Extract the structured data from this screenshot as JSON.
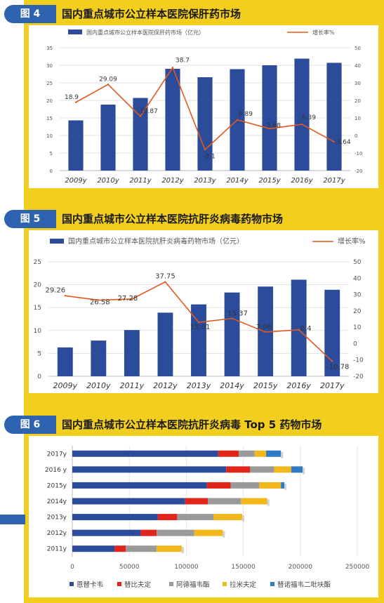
{
  "figures": [
    {
      "tag": "图 4",
      "title": "国内重点城市公立样本医院保肝药市场"
    },
    {
      "tag": "图 5",
      "title": "国内重点城市公立样本医院抗肝炎病毒药物市场"
    },
    {
      "tag": "图 6",
      "title": "国内重点城市公立样本医院抗肝炎病毒 Top 5 药物市场"
    }
  ],
  "chart_data": [
    {
      "type": "bar",
      "categories": [
        "2009y",
        "2010y",
        "2011y",
        "2012y",
        "2013y",
        "2014y",
        "2015y",
        "2016y",
        "2017y"
      ],
      "series": [
        {
          "name": "国内重点城市公立样本医院保肝药市场（亿元）",
          "kind": "bar",
          "axis": "left",
          "color": "#2b4b9b",
          "values": [
            14.3,
            18.8,
            20.7,
            29.0,
            26.6,
            28.9,
            30.0,
            31.9,
            30.7
          ]
        },
        {
          "name": "增长率%",
          "kind": "line",
          "axis": "right",
          "color": "#e2591d",
          "values": [
            18.9,
            29.09,
            10.87,
            38.7,
            -8.1,
            8.89,
            3.88,
            6.39,
            -3.64
          ],
          "labels": [
            "18.9",
            "29.09",
            "10.87",
            "38.7",
            "-8.1",
            "8.89",
            "3.88",
            "6.39",
            "-3.64"
          ]
        }
      ],
      "left_axis": {
        "min": 0,
        "max": 35,
        "ticks": [
          "0",
          "5",
          "10",
          "15",
          "20",
          "25",
          "30",
          "35"
        ]
      },
      "right_axis": {
        "min": -20,
        "max": 50,
        "ticks": [
          "-20",
          "-10",
          "0",
          "10",
          "20",
          "30",
          "40",
          "50"
        ]
      }
    },
    {
      "type": "bar",
      "categories": [
        "2009y",
        "2010y",
        "2011y",
        "2012y",
        "2013y",
        "2014y",
        "2015y",
        "2016y",
        "2017y"
      ],
      "series": [
        {
          "name": "国内重点城市公立样本医院抗肝炎病毒药物市场（亿元）",
          "kind": "bar",
          "axis": "left",
          "color": "#2b4b9b",
          "values": [
            6.3,
            7.8,
            10.1,
            13.9,
            15.7,
            18.3,
            19.6,
            21.1,
            18.9
          ]
        },
        {
          "name": "增长率%",
          "kind": "line",
          "axis": "right",
          "color": "#e2591d",
          "values": [
            29.26,
            26.58,
            27.28,
            37.75,
            13.01,
            15.37,
            7.06,
            8.4,
            -10.78
          ],
          "labels": [
            "29.26",
            "26.58",
            "27.28",
            "37.75",
            "13.01",
            "15.37",
            "7.06",
            "8.4",
            "-10.78"
          ]
        }
      ],
      "left_axis": {
        "min": 0,
        "max": 25,
        "ticks": [
          "0",
          "5",
          "10",
          "15",
          "20",
          "25"
        ]
      },
      "right_axis": {
        "min": -20,
        "max": 50,
        "ticks": [
          "-20",
          "-10",
          "0",
          "10",
          "20",
          "30",
          "40",
          "50"
        ]
      }
    },
    {
      "type": "bar",
      "orientation": "horizontal",
      "stacked": true,
      "categories": [
        "2017y",
        "2016 y",
        "2015y",
        "2014y",
        "2013y",
        "2012y",
        "2011y"
      ],
      "series": [
        {
          "name": "恩替卡韦",
          "color": "#2b4b9b",
          "values": [
            128000,
            135000,
            118000,
            99000,
            75000,
            60000,
            37000
          ]
        },
        {
          "name": "替比夫定",
          "color": "#e1251b",
          "values": [
            18000,
            21000,
            21000,
            20000,
            17000,
            14000,
            10000
          ]
        },
        {
          "name": "阿德福韦酯",
          "color": "#9a9a9a",
          "values": [
            14000,
            21000,
            25000,
            29000,
            32000,
            33000,
            27000
          ]
        },
        {
          "name": "拉米夫定",
          "color": "#f2b71a",
          "values": [
            10000,
            15000,
            19000,
            23000,
            25000,
            25000,
            22000
          ]
        },
        {
          "name": "替诺福韦二吡呋酯",
          "color": "#2c7bc4",
          "values": [
            13000,
            10000,
            3000,
            0,
            0,
            0,
            0
          ]
        }
      ],
      "x_axis": {
        "min": 0,
        "max": 250000,
        "ticks": [
          "0",
          "50000",
          "100000",
          "150000",
          "200000",
          "250000"
        ]
      }
    }
  ]
}
